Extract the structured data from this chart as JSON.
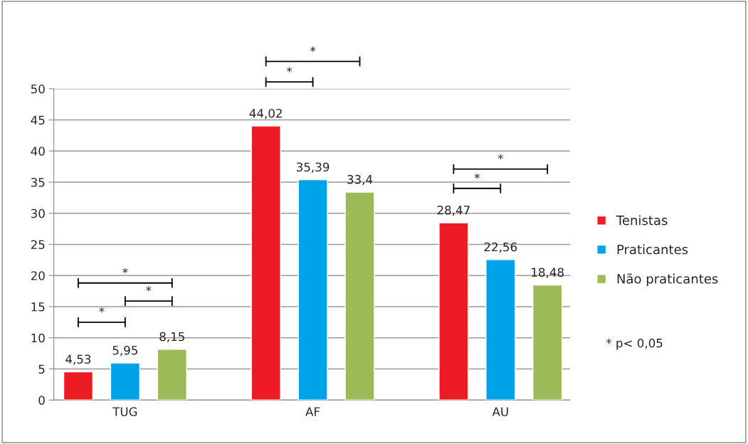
{
  "chart_data": {
    "type": "bar",
    "categories": [
      "TUG",
      "AF",
      "AU"
    ],
    "series": [
      {
        "name": "Tenistas",
        "color": "#ed1c24",
        "values": [
          4.53,
          44.02,
          28.47
        ],
        "value_labels": [
          "4,53",
          "44,02",
          "28,47"
        ]
      },
      {
        "name": "Praticantes",
        "color": "#00a2e8",
        "values": [
          5.95,
          35.39,
          22.56
        ],
        "value_labels": [
          "5,95",
          "35,39",
          "22,56"
        ]
      },
      {
        "name": "Não praticantes",
        "color": "#9bbb59",
        "values": [
          8.15,
          33.4,
          18.48
        ],
        "value_labels": [
          "8,15",
          "33,4",
          "18,48"
        ]
      }
    ],
    "ylim": [
      0,
      50
    ],
    "yticks": [
      0,
      5,
      10,
      15,
      20,
      25,
      30,
      35,
      40,
      45,
      50
    ],
    "grid": "y",
    "legend": "right",
    "annotations": [
      "*",
      "*",
      "*",
      "*",
      "*",
      "*",
      "*",
      "* p< 0,05"
    ]
  }
}
